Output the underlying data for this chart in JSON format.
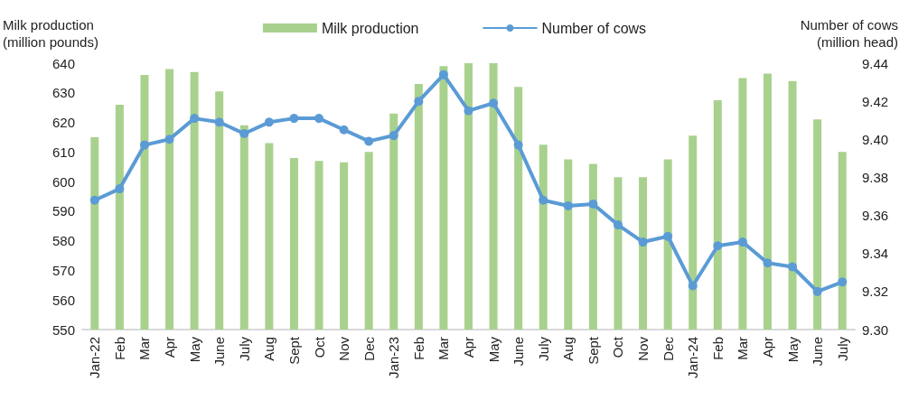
{
  "chart_data": {
    "type": "bar",
    "ylabel": "Milk production\n(million pounds)",
    "y2label": "Number of cows\n(million head)",
    "categories": [
      "Jan-22",
      "Feb",
      "Mar",
      "Apr",
      "May",
      "June",
      "July",
      "Aug",
      "Sept",
      "Oct",
      "Nov",
      "Dec",
      "Jan-23",
      "Feb",
      "Mar",
      "Apr",
      "May",
      "June",
      "July",
      "Aug",
      "Sept",
      "Oct",
      "Nov",
      "Dec",
      "Jan-24",
      "Feb",
      "Mar",
      "Apr",
      "May",
      "June",
      "July"
    ],
    "series": [
      {
        "name": "Milk production",
        "color": "#a9d18e",
        "values": [
          615,
          626,
          636,
          638,
          637,
          630.5,
          619,
          613,
          608,
          607,
          606.5,
          610,
          623,
          633,
          639,
          640,
          640,
          632,
          612.5,
          607.5,
          606,
          601.5,
          601.5,
          607.5,
          615.5,
          627.5,
          635,
          636.5,
          634,
          621,
          610
        ]
      },
      {
        "name": "Number of cows",
        "type": "line",
        "axis": "y2",
        "color": "#5b9bd5",
        "marker": "circle",
        "values": [
          9.368,
          9.374,
          9.397,
          9.4,
          9.411,
          9.409,
          9.403,
          9.409,
          9.411,
          9.411,
          9.405,
          9.399,
          9.402,
          9.42,
          9.434,
          9.415,
          9.419,
          9.397,
          9.368,
          9.365,
          9.366,
          9.355,
          9.346,
          9.349,
          9.323,
          9.344,
          9.346,
          9.335,
          9.333,
          9.32,
          9.325
        ]
      }
    ],
    "ylim": [
      550,
      640
    ],
    "yticks": [
      550,
      560,
      570,
      580,
      590,
      600,
      610,
      620,
      630,
      640
    ],
    "y2lim": [
      9.3,
      9.44
    ],
    "y2ticks": [
      {
        "value": 9.3,
        "label": "9.30"
      },
      {
        "value": 9.32,
        "label": "9.32"
      },
      {
        "value": 9.34,
        "label": "9.34"
      },
      {
        "value": 9.36,
        "label": "9.36"
      },
      {
        "value": 9.38,
        "label": "9.38"
      },
      {
        "value": 9.4,
        "label": "9.40"
      },
      {
        "value": 9.42,
        "label": "9.42"
      },
      {
        "value": 9.44,
        "label": "9.44"
      }
    ],
    "grid": false,
    "legend": "top"
  }
}
